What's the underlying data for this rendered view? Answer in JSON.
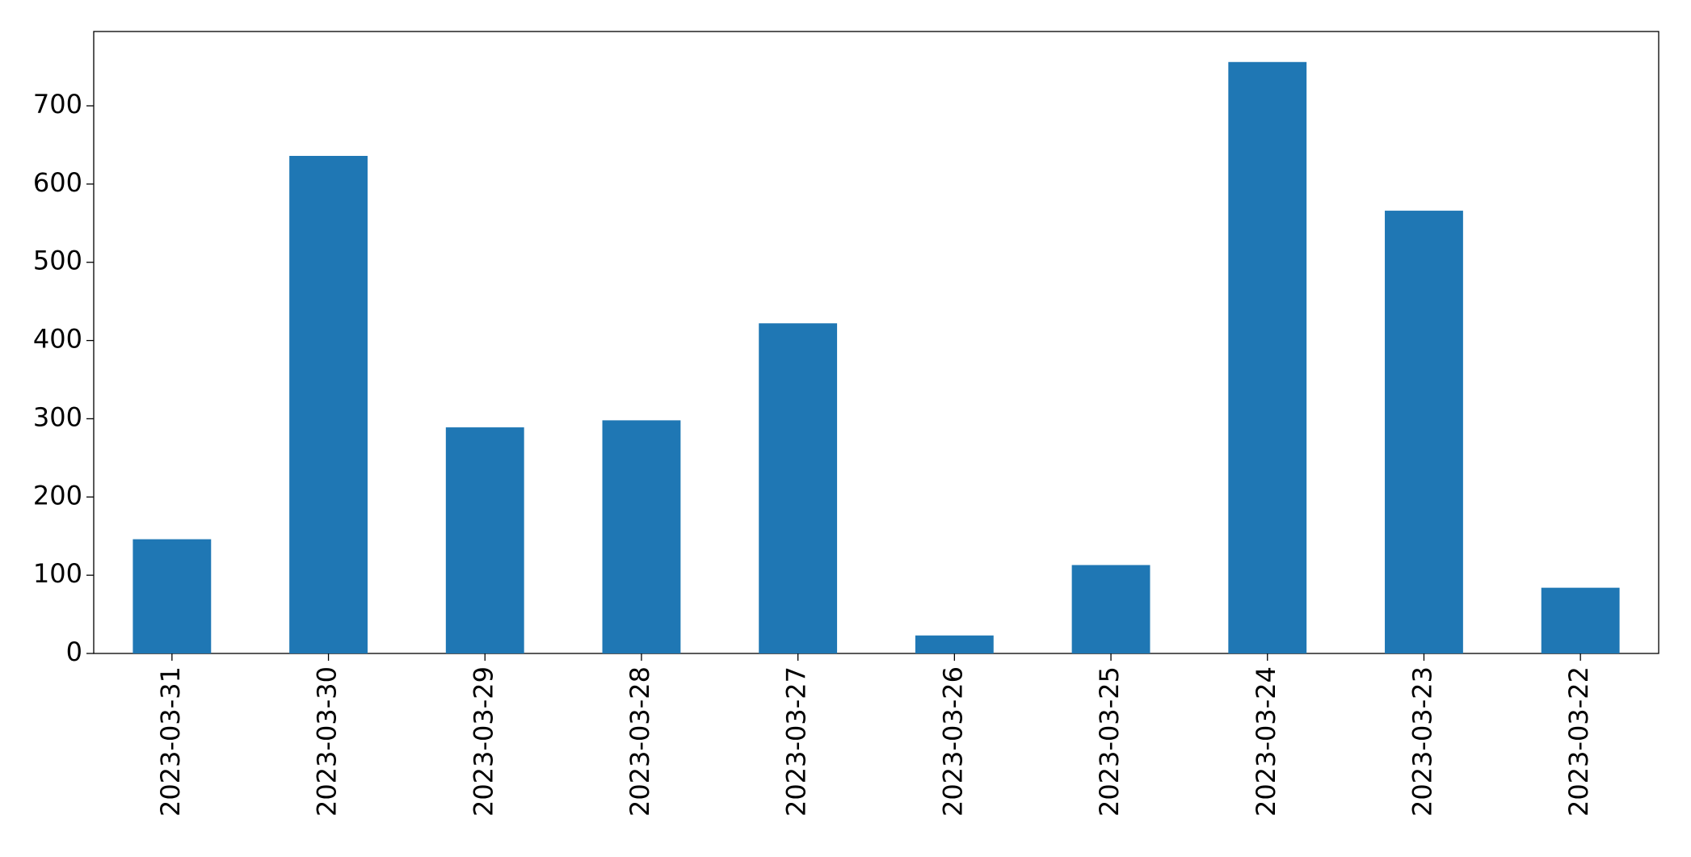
{
  "chart_data": {
    "type": "bar",
    "categories": [
      "2023-03-31",
      "2023-03-30",
      "2023-03-29",
      "2023-03-28",
      "2023-03-27",
      "2023-03-26",
      "2023-03-25",
      "2023-03-24",
      "2023-03-23",
      "2023-03-22"
    ],
    "values": [
      146,
      636,
      289,
      298,
      422,
      23,
      113,
      756,
      566,
      84
    ],
    "color": "#1f77b4",
    "ylim": [
      0,
      795
    ],
    "yticks": [
      0,
      100,
      200,
      300,
      400,
      500,
      600,
      700
    ],
    "grid": false
  }
}
